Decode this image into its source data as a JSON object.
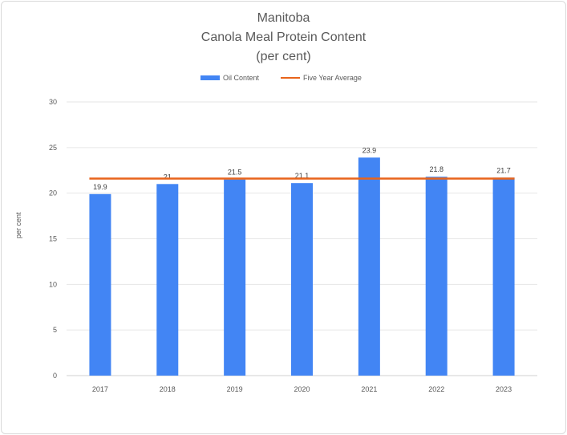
{
  "chart_data": {
    "type": "bar",
    "title": [
      "Manitoba",
      "Canola Meal Protein Content",
      "(per cent)"
    ],
    "xlabel": "",
    "ylabel": "per cent",
    "categories": [
      "2017",
      "2018",
      "2019",
      "2020",
      "2021",
      "2022",
      "2023"
    ],
    "series": [
      {
        "name": "Oil Content",
        "type": "bar",
        "color": "#4285f4",
        "values": [
          19.9,
          21,
          21.5,
          21.1,
          23.9,
          21.8,
          21.7
        ]
      },
      {
        "name": "Five Year Average",
        "type": "line",
        "color": "#e8641b",
        "values": [
          21.6,
          21.6,
          21.6,
          21.6,
          21.6,
          21.6,
          21.6
        ]
      }
    ],
    "data_labels": [
      "19.9",
      "21",
      "21.5",
      "21.1",
      "23.9",
      "21.8",
      "21.7"
    ],
    "ylim": [
      0,
      30
    ],
    "yticks": [
      0,
      5,
      10,
      15,
      20,
      25,
      30
    ],
    "grid": true,
    "legend_position": "top"
  }
}
